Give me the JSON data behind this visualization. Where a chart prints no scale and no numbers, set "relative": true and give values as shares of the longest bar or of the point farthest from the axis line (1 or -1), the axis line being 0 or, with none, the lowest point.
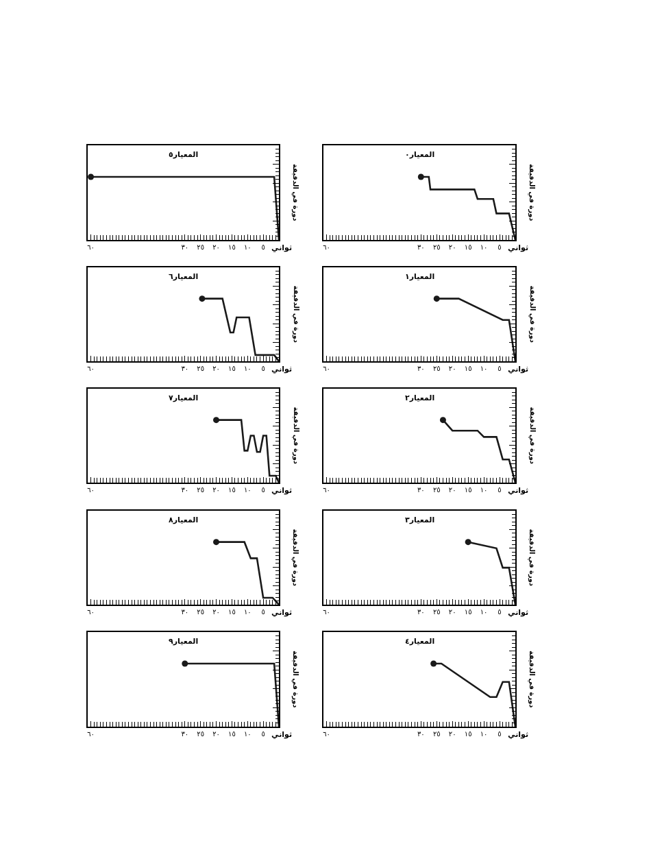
{
  "chart_data": [
    {
      "type": "line",
      "title": "المعيار٠",
      "xlabel": "ثواني",
      "ylabel": "دورة في الدقيقة",
      "relative": true,
      "xlim": [
        61,
        0
      ],
      "xticks": [
        {
          "value": 5,
          "label": "٥"
        },
        {
          "value": 10,
          "label": "١٠"
        },
        {
          "value": 15,
          "label": "١٥"
        },
        {
          "value": 20,
          "label": "٢٠"
        },
        {
          "value": 25,
          "label": "٢٥"
        },
        {
          "value": 30,
          "label": "٣٠"
        },
        {
          "value": 60,
          "label": "٦٠"
        }
      ],
      "series": [
        {
          "color": "#1a1a1a",
          "marker": "none",
          "x": [
            30,
            27.5,
            27,
            13,
            12,
            7,
            6,
            2,
            0
          ],
          "values": [
            1,
            1,
            0.8,
            0.8,
            0.65,
            0.65,
            0.42,
            0.42,
            0
          ]
        },
        {
          "type": "scatter",
          "color": "#1a1a1a",
          "marker": "circle",
          "x": [
            30
          ],
          "values": [
            1
          ]
        }
      ]
    },
    {
      "type": "line",
      "title": "المعيار١",
      "xlabel": "ثواني",
      "ylabel": "دورة في الدقيقة",
      "relative": true,
      "xlim": [
        61,
        0
      ],
      "xticks": [
        {
          "value": 5,
          "label": "٥"
        },
        {
          "value": 10,
          "label": "١٠"
        },
        {
          "value": 15,
          "label": "١٥"
        },
        {
          "value": 20,
          "label": "٢٠"
        },
        {
          "value": 25,
          "label": "٢٥"
        },
        {
          "value": 30,
          "label": "٣٠"
        },
        {
          "value": 60,
          "label": "٦٠"
        }
      ],
      "series": [
        {
          "color": "#1a1a1a",
          "marker": "none",
          "x": [
            25,
            18,
            4,
            2,
            0
          ],
          "values": [
            1,
            1,
            0.66,
            0.66,
            0
          ]
        },
        {
          "type": "scatter",
          "color": "#1a1a1a",
          "marker": "circle",
          "x": [
            25
          ],
          "values": [
            1
          ]
        }
      ]
    },
    {
      "type": "line",
      "title": "المعيار٢",
      "xlabel": "ثواني",
      "ylabel": "دورة في الدقيقة",
      "relative": true,
      "xlim": [
        61,
        0
      ],
      "xticks": [
        {
          "value": 5,
          "label": "٥"
        },
        {
          "value": 10,
          "label": "١٠"
        },
        {
          "value": 15,
          "label": "١٥"
        },
        {
          "value": 20,
          "label": "٢٠"
        },
        {
          "value": 25,
          "label": "٢٥"
        },
        {
          "value": 30,
          "label": "٣٠"
        },
        {
          "value": 60,
          "label": "٦٠"
        }
      ],
      "series": [
        {
          "color": "#1a1a1a",
          "marker": "none",
          "x": [
            23,
            20,
            12,
            10,
            6,
            4,
            2,
            0
          ],
          "values": [
            1,
            0.83,
            0.83,
            0.73,
            0.73,
            0.37,
            0.37,
            0
          ]
        },
        {
          "type": "scatter",
          "color": "#1a1a1a",
          "marker": "circle",
          "x": [
            23
          ],
          "values": [
            1
          ]
        }
      ]
    },
    {
      "type": "line",
      "title": "المعيار٣",
      "xlabel": "ثواني",
      "ylabel": "دورة في الدقيقة",
      "relative": true,
      "xlim": [
        61,
        0
      ],
      "xticks": [
        {
          "value": 5,
          "label": "٥"
        },
        {
          "value": 10,
          "label": "١٠"
        },
        {
          "value": 15,
          "label": "١٥"
        },
        {
          "value": 20,
          "label": "٢٠"
        },
        {
          "value": 25,
          "label": "٢٥"
        },
        {
          "value": 30,
          "label": "٣٠"
        },
        {
          "value": 60,
          "label": "٦٠"
        }
      ],
      "series": [
        {
          "color": "#1a1a1a",
          "marker": "none",
          "x": [
            15,
            6,
            4,
            2,
            0
          ],
          "values": [
            1,
            0.9,
            0.59,
            0.59,
            0
          ]
        },
        {
          "type": "scatter",
          "color": "#1a1a1a",
          "marker": "circle",
          "x": [
            15
          ],
          "values": [
            1
          ]
        }
      ]
    },
    {
      "type": "line",
      "title": "المعيار٤",
      "xlabel": "ثواني",
      "ylabel": "دورة في الدقيقة",
      "relative": true,
      "xlim": [
        61,
        0
      ],
      "xticks": [
        {
          "value": 5,
          "label": "٥"
        },
        {
          "value": 10,
          "label": "١٠"
        },
        {
          "value": 15,
          "label": "١٥"
        },
        {
          "value": 20,
          "label": "٢٠"
        },
        {
          "value": 25,
          "label": "٢٥"
        },
        {
          "value": 30,
          "label": "٣٠"
        },
        {
          "value": 60,
          "label": "٦٠"
        }
      ],
      "series": [
        {
          "color": "#1a1a1a",
          "marker": "none",
          "x": [
            26,
            23.5,
            8,
            6,
            4,
            2,
            0
          ],
          "values": [
            1,
            1,
            0.47,
            0.47,
            0.71,
            0.71,
            0
          ]
        },
        {
          "type": "scatter",
          "color": "#1a1a1a",
          "marker": "circle",
          "x": [
            26
          ],
          "values": [
            1
          ]
        }
      ]
    },
    {
      "type": "line",
      "title": "المعيار٥",
      "xlabel": "ثواني",
      "ylabel": "دورة في الدقيقة",
      "relative": true,
      "xlim": [
        61,
        0
      ],
      "xticks": [
        {
          "value": 5,
          "label": "٥"
        },
        {
          "value": 10,
          "label": "١٠"
        },
        {
          "value": 15,
          "label": "١٥"
        },
        {
          "value": 20,
          "label": "٢٠"
        },
        {
          "value": 25,
          "label": "٢٥"
        },
        {
          "value": 30,
          "label": "٣٠"
        },
        {
          "value": 60,
          "label": "٦٠"
        }
      ],
      "series": [
        {
          "color": "#1a1a1a",
          "marker": "none",
          "x": [
            60,
            1.5,
            0
          ],
          "values": [
            1,
            1,
            0
          ]
        },
        {
          "type": "scatter",
          "color": "#1a1a1a",
          "marker": "circle",
          "x": [
            60
          ],
          "values": [
            1
          ]
        }
      ]
    },
    {
      "type": "line",
      "title": "المعيار٦",
      "xlabel": "ثواني",
      "ylabel": "دورة في الدقيقة",
      "relative": true,
      "xlim": [
        61,
        0
      ],
      "xticks": [
        {
          "value": 5,
          "label": "٥"
        },
        {
          "value": 10,
          "label": "١٠"
        },
        {
          "value": 15,
          "label": "١٥"
        },
        {
          "value": 20,
          "label": "٢٠"
        },
        {
          "value": 25,
          "label": "٢٥"
        },
        {
          "value": 30,
          "label": "٣٠"
        },
        {
          "value": 60,
          "label": "٦٠"
        }
      ],
      "series": [
        {
          "color": "#1a1a1a",
          "marker": "none",
          "x": [
            24.5,
            18,
            15.5,
            14.5,
            13.5,
            9.5,
            7.5,
            1.5,
            0
          ],
          "values": [
            1,
            1,
            0.46,
            0.46,
            0.7,
            0.7,
            0.1,
            0.1,
            0
          ]
        },
        {
          "type": "scatter",
          "color": "#1a1a1a",
          "marker": "circle",
          "x": [
            24.5
          ],
          "values": [
            1
          ]
        }
      ]
    },
    {
      "type": "line",
      "title": "المعيار٧",
      "xlabel": "ثواني",
      "ylabel": "دورة في الدقيقة",
      "relative": true,
      "xlim": [
        61,
        0
      ],
      "xticks": [
        {
          "value": 5,
          "label": "٥"
        },
        {
          "value": 10,
          "label": "١٠"
        },
        {
          "value": 15,
          "label": "١٥"
        },
        {
          "value": 20,
          "label": "٢٠"
        },
        {
          "value": 25,
          "label": "٢٥"
        },
        {
          "value": 30,
          "label": "٣٠"
        },
        {
          "value": 60,
          "label": "٦٠"
        }
      ],
      "series": [
        {
          "color": "#1a1a1a",
          "marker": "none",
          "x": [
            20,
            12,
            11,
            10,
            9,
            8,
            7,
            6,
            5,
            4,
            3,
            1,
            0
          ],
          "values": [
            1,
            1,
            0.51,
            0.51,
            0.75,
            0.75,
            0.49,
            0.49,
            0.75,
            0.75,
            0.11,
            0.11,
            0
          ]
        },
        {
          "type": "scatter",
          "color": "#1a1a1a",
          "marker": "circle",
          "x": [
            20
          ],
          "values": [
            1
          ]
        }
      ]
    },
    {
      "type": "line",
      "title": "المعيار٨",
      "xlabel": "ثواني",
      "ylabel": "دورة في الدقيقة",
      "relative": true,
      "xlim": [
        61,
        0
      ],
      "xticks": [
        {
          "value": 5,
          "label": "٥"
        },
        {
          "value": 10,
          "label": "١٠"
        },
        {
          "value": 15,
          "label": "١٥"
        },
        {
          "value": 20,
          "label": "٢٠"
        },
        {
          "value": 25,
          "label": "٢٥"
        },
        {
          "value": 30,
          "label": "٣٠"
        },
        {
          "value": 60,
          "label": "٦٠"
        }
      ],
      "series": [
        {
          "color": "#1a1a1a",
          "marker": "none",
          "x": [
            20,
            11,
            9,
            7,
            5,
            2,
            0
          ],
          "values": [
            1,
            1,
            0.74,
            0.74,
            0.11,
            0.11,
            0
          ]
        },
        {
          "type": "scatter",
          "color": "#1a1a1a",
          "marker": "circle",
          "x": [
            20
          ],
          "values": [
            1
          ]
        }
      ]
    },
    {
      "type": "line",
      "title": "المعيار٩",
      "xlabel": "ثواني",
      "ylabel": "دورة في الدقيقة",
      "relative": true,
      "xlim": [
        61,
        0
      ],
      "xticks": [
        {
          "value": 5,
          "label": "٥"
        },
        {
          "value": 10,
          "label": "١٠"
        },
        {
          "value": 15,
          "label": "١٥"
        },
        {
          "value": 20,
          "label": "٢٠"
        },
        {
          "value": 25,
          "label": "٢٥"
        },
        {
          "value": 30,
          "label": "٣٠"
        },
        {
          "value": 60,
          "label": "٦٠"
        }
      ],
      "series": [
        {
          "color": "#1a1a1a",
          "marker": "none",
          "x": [
            30,
            1.5,
            0
          ],
          "values": [
            1,
            1,
            0
          ]
        },
        {
          "type": "scatter",
          "color": "#1a1a1a",
          "marker": "circle",
          "x": [
            30
          ],
          "values": [
            1
          ]
        }
      ]
    }
  ]
}
